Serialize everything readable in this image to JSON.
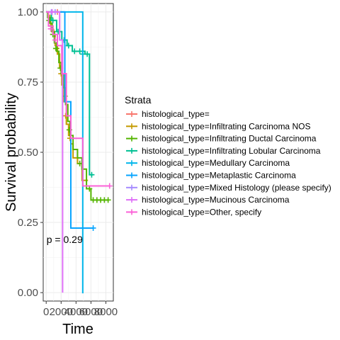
{
  "chart_data": {
    "type": "line",
    "xlabel": "Time",
    "ylabel": "Survival probability",
    "xlim": [
      -400,
      9000
    ],
    "ylim": [
      -0.03,
      1.03
    ],
    "x_ticks": [
      0,
      2000,
      4000,
      6000,
      8000
    ],
    "x_tick_labels": [
      "0",
      "2000",
      "4000",
      "6000",
      "8000"
    ],
    "y_ticks": [
      0,
      0.25,
      0.5,
      0.75,
      1
    ],
    "y_tick_labels": [
      "0.00",
      "0.25",
      "0.50",
      "0.75",
      "1.00"
    ],
    "annotation": "p = 0.29",
    "annotation_pos": {
      "x": 50,
      "y": 0.19
    },
    "grid": true,
    "legend_placement": "right",
    "legend_title": "Strata",
    "series": [
      {
        "name": "histological_type=",
        "color": "#F8766D",
        "steps": [
          [
            0,
            1
          ],
          [
            2500,
            1
          ]
        ],
        "censors": [
          [
            1500,
            1
          ]
        ]
      },
      {
        "name": "histological_type=Infiltrating Carcinoma NOS",
        "color": "#C49A00",
        "steps": [
          [
            0,
            1
          ],
          [
            300,
            0.98
          ],
          [
            600,
            0.95
          ],
          [
            900,
            0.92
          ],
          [
            1200,
            0.88
          ],
          [
            1500,
            0.85
          ],
          [
            1800,
            0.8
          ],
          [
            2100,
            0.74
          ],
          [
            2400,
            0.68
          ],
          [
            2700,
            0.6
          ],
          [
            3000,
            0.56
          ],
          [
            3300,
            0.53
          ],
          [
            3600,
            0.48
          ],
          [
            4200,
            0.46
          ],
          [
            4800,
            0.4
          ],
          [
            5600,
            0.4
          ]
        ],
        "censors": [
          [
            500,
            0.98
          ],
          [
            1000,
            0.93
          ],
          [
            1400,
            0.87
          ],
          [
            2000,
            0.78
          ],
          [
            2600,
            0.63
          ],
          [
            3200,
            0.55
          ]
        ]
      },
      {
        "name": "histological_type=Infiltrating Ductal Carcinoma",
        "color": "#53B400",
        "steps": [
          [
            0,
            1
          ],
          [
            200,
            0.98
          ],
          [
            500,
            0.96
          ],
          [
            800,
            0.93
          ],
          [
            1100,
            0.89
          ],
          [
            1400,
            0.86
          ],
          [
            1700,
            0.82
          ],
          [
            2000,
            0.78
          ],
          [
            2300,
            0.73
          ],
          [
            2600,
            0.67
          ],
          [
            2900,
            0.61
          ],
          [
            3200,
            0.56
          ],
          [
            3600,
            0.51
          ],
          [
            4200,
            0.48
          ],
          [
            4800,
            0.44
          ],
          [
            5400,
            0.37
          ],
          [
            6000,
            0.33
          ],
          [
            8400,
            0.33
          ]
        ],
        "censors": [
          [
            400,
            0.97
          ],
          [
            900,
            0.92
          ],
          [
            1300,
            0.87
          ],
          [
            1900,
            0.8
          ],
          [
            2500,
            0.7
          ],
          [
            3100,
            0.58
          ],
          [
            4500,
            0.46
          ],
          [
            5800,
            0.37
          ],
          [
            6300,
            0.33
          ],
          [
            6800,
            0.33
          ],
          [
            7300,
            0.33
          ],
          [
            7800,
            0.33
          ],
          [
            8300,
            0.33
          ]
        ]
      },
      {
        "name": "histological_type=Infiltrating Lobular Carcinoma",
        "color": "#00C094",
        "steps": [
          [
            0,
            1
          ],
          [
            700,
            0.97
          ],
          [
            1400,
            0.93
          ],
          [
            2100,
            0.9
          ],
          [
            2800,
            0.88
          ],
          [
            3500,
            0.86
          ],
          [
            4300,
            0.86
          ],
          [
            5200,
            0.85
          ],
          [
            5800,
            0.42
          ],
          [
            6300,
            0.42
          ]
        ],
        "censors": [
          [
            900,
            0.97
          ],
          [
            1600,
            0.93
          ],
          [
            2400,
            0.9
          ],
          [
            3000,
            0.88
          ],
          [
            3800,
            0.86
          ],
          [
            4500,
            0.86
          ],
          [
            4900,
            0.85
          ],
          [
            5500,
            0.85
          ],
          [
            6100,
            0.42
          ]
        ]
      },
      {
        "name": "histological_type=Medullary Carcinoma",
        "color": "#00B6EB",
        "steps": [
          [
            0,
            1
          ],
          [
            4900,
            1
          ],
          [
            4900,
            0
          ],
          [
            5000,
            0
          ]
        ],
        "censors": []
      },
      {
        "name": "histological_type=Metaplastic Carcinoma",
        "color": "#06A4FF",
        "steps": [
          [
            0,
            1
          ],
          [
            2500,
            1
          ],
          [
            2500,
            0.68
          ],
          [
            3300,
            0.68
          ],
          [
            3300,
            0.23
          ],
          [
            6300,
            0.23
          ]
        ],
        "censors": [
          [
            6300,
            0.23
          ]
        ]
      },
      {
        "name": "histological_type=Mixed Histology (please specify)",
        "color": "#A58AFF",
        "steps": [
          [
            0,
            1
          ],
          [
            700,
            1
          ]
        ],
        "censors": [
          [
            700,
            1
          ],
          [
            1200,
            1
          ]
        ]
      },
      {
        "name": "histological_type=Mucinous Carcinoma",
        "color": "#DF70F8",
        "steps": [
          [
            0,
            1
          ],
          [
            1800,
            1
          ],
          [
            1800,
            0.9
          ],
          [
            2200,
            0.9
          ],
          [
            2200,
            0
          ]
        ],
        "censors": [
          [
            800,
            1
          ]
        ]
      },
      {
        "name": "histological_type=Other, specify",
        "color": "#FB61D7",
        "steps": [
          [
            0,
            1
          ],
          [
            300,
            0.95
          ],
          [
            900,
            0.92
          ],
          [
            1500,
            0.88
          ],
          [
            2100,
            0.78
          ],
          [
            2700,
            0.63
          ],
          [
            3300,
            0.55
          ],
          [
            4000,
            0.55
          ],
          [
            4900,
            0.38
          ],
          [
            8500,
            0.38
          ]
        ],
        "censors": [
          [
            600,
            0.94
          ],
          [
            1200,
            0.9
          ],
          [
            8500,
            0.38
          ]
        ]
      }
    ]
  }
}
